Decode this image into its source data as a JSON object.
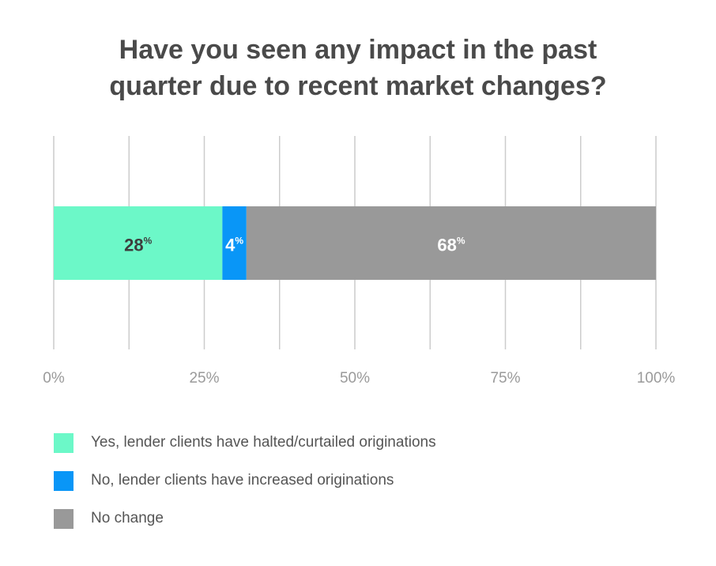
{
  "chart_data": {
    "type": "bar",
    "orientation": "horizontal-stacked",
    "title_lines": [
      "Have you seen any impact in the past",
      "quarter due to recent market changes?"
    ],
    "categories": [
      ""
    ],
    "series": [
      {
        "name": "Yes, lender clients have halted/curtailed originations",
        "value": 28,
        "label": "28",
        "color": "#6cf8c8"
      },
      {
        "name": "No, lender clients have increased originations",
        "value": 4,
        "label": "4",
        "color": "#0996f7"
      },
      {
        "name": "No change",
        "value": 68,
        "label": "68",
        "color": "#999999"
      }
    ],
    "data_label_suffix": "%",
    "xlim": [
      0,
      100
    ],
    "x_tick_labels": [
      "0%",
      "25%",
      "50%",
      "75%",
      "100%"
    ],
    "x_tick_values": [
      0,
      25,
      50,
      75,
      100
    ],
    "grid": true,
    "legend_position": "bottom-left"
  }
}
